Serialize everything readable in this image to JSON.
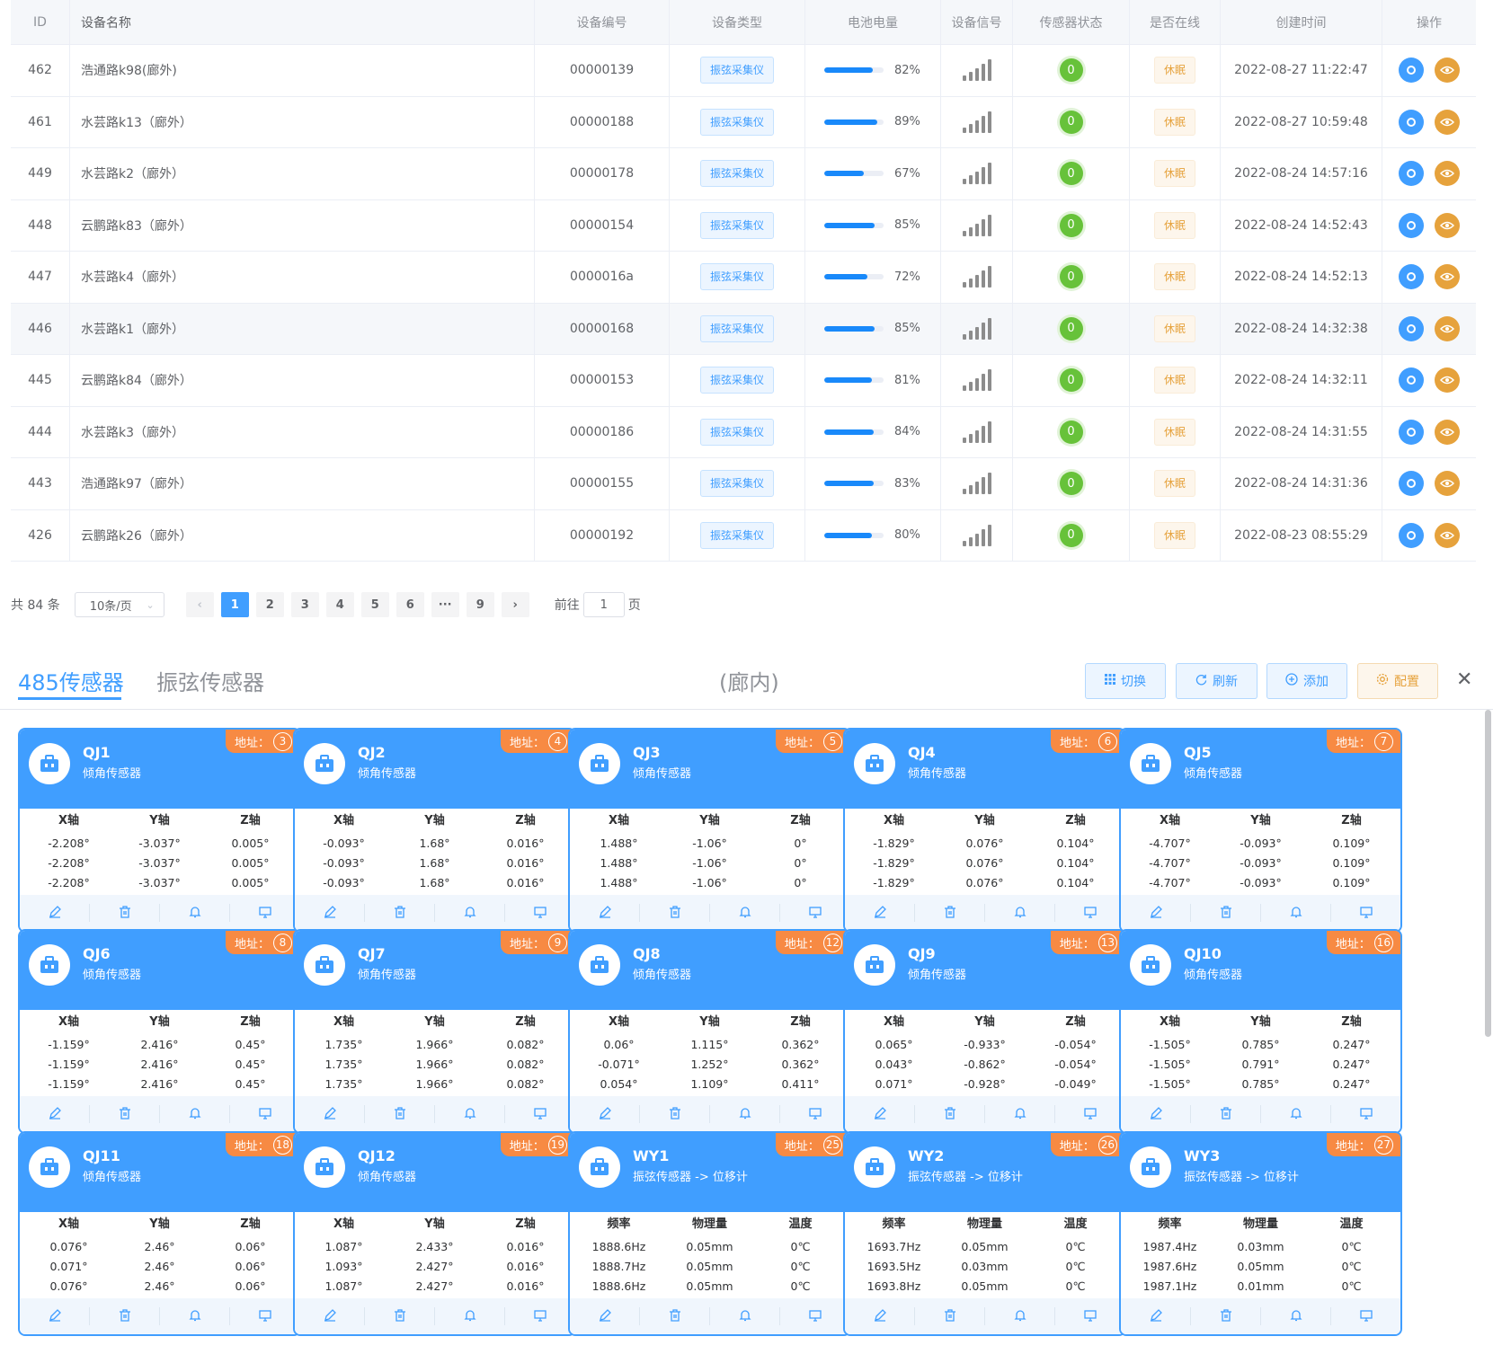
{
  "table": {
    "headers": [
      "ID",
      "设备名称",
      "设备编号",
      "设备类型",
      "电池电量",
      "设备信号",
      "传感器状态",
      "是否在线",
      "创建时间",
      "操作"
    ],
    "rows": [
      {
        "id": "462",
        "name": "浩通路k98(廊外)",
        "code": "00000139",
        "type": "振弦采集仪",
        "battery_pct": 82,
        "battery": "82%",
        "sensor": "0",
        "online": "休眠",
        "created": "2022-08-27 11:22:47"
      },
      {
        "id": "461",
        "name": "水芸路k13（廊外）",
        "code": "00000188",
        "type": "振弦采集仪",
        "battery_pct": 89,
        "battery": "89%",
        "sensor": "0",
        "online": "休眠",
        "created": "2022-08-27 10:59:48"
      },
      {
        "id": "449",
        "name": "水芸路k2（廊外）",
        "code": "00000178",
        "type": "振弦采集仪",
        "battery_pct": 67,
        "battery": "67%",
        "sensor": "0",
        "online": "休眠",
        "created": "2022-08-24 14:57:16"
      },
      {
        "id": "448",
        "name": "云鹏路k83（廊外）",
        "code": "00000154",
        "type": "振弦采集仪",
        "battery_pct": 85,
        "battery": "85%",
        "sensor": "0",
        "online": "休眠",
        "created": "2022-08-24 14:52:43"
      },
      {
        "id": "447",
        "name": "水芸路k4（廊外）",
        "code": "0000016a",
        "type": "振弦采集仪",
        "battery_pct": 72,
        "battery": "72%",
        "sensor": "0",
        "online": "休眠",
        "created": "2022-08-24 14:52:13"
      },
      {
        "id": "446",
        "name": "水芸路k1（廊外）",
        "code": "00000168",
        "type": "振弦采集仪",
        "battery_pct": 85,
        "battery": "85%",
        "sensor": "0",
        "online": "休眠",
        "created": "2022-08-24 14:32:38"
      },
      {
        "id": "445",
        "name": "云鹏路k84（廊外）",
        "code": "00000153",
        "type": "振弦采集仪",
        "battery_pct": 81,
        "battery": "81%",
        "sensor": "0",
        "online": "休眠",
        "created": "2022-08-24 14:32:11"
      },
      {
        "id": "444",
        "name": "水芸路k3（廊外）",
        "code": "00000186",
        "type": "振弦采集仪",
        "battery_pct": 84,
        "battery": "84%",
        "sensor": "0",
        "online": "休眠",
        "created": "2022-08-24 14:31:55"
      },
      {
        "id": "443",
        "name": "浩通路k97（廊外）",
        "code": "00000155",
        "type": "振弦采集仪",
        "battery_pct": 83,
        "battery": "83%",
        "sensor": "0",
        "online": "休眠",
        "created": "2022-08-24 14:31:36"
      },
      {
        "id": "426",
        "name": "云鹏路k26（廊外）",
        "code": "00000192",
        "type": "振弦采集仪",
        "battery_pct": 80,
        "battery": "80%",
        "sensor": "0",
        "online": "休眠",
        "created": "2022-08-23 08:55:29"
      }
    ]
  },
  "pager": {
    "total": "共 84 条",
    "page_size": "10条/页",
    "pages": [
      "1",
      "2",
      "3",
      "4",
      "5",
      "6",
      "···",
      "9"
    ],
    "current": "1",
    "goto_prefix": "前往",
    "goto_value": "1",
    "goto_suffix": "页"
  },
  "tabs": {
    "active": "485传感器",
    "inactive": "振弦传感器",
    "subtitle": "(廊内)"
  },
  "toolbar": {
    "switch": "切换",
    "refresh": "刷新",
    "add": "添加",
    "config": "配置"
  },
  "address_label": "地址：",
  "cards": [
    {
      "title": "QJ1",
      "subtitle": "倾角传感器",
      "addr": "3",
      "cols": [
        "X轴",
        "Y轴",
        "Z轴"
      ],
      "rows": [
        [
          "-2.208°",
          "-3.037°",
          "0.005°"
        ],
        [
          "-2.208°",
          "-3.037°",
          "0.005°"
        ],
        [
          "-2.208°",
          "-3.037°",
          "0.005°"
        ]
      ]
    },
    {
      "title": "QJ2",
      "subtitle": "倾角传感器",
      "addr": "4",
      "cols": [
        "X轴",
        "Y轴",
        "Z轴"
      ],
      "rows": [
        [
          "-0.093°",
          "1.68°",
          "0.016°"
        ],
        [
          "-0.093°",
          "1.68°",
          "0.016°"
        ],
        [
          "-0.093°",
          "1.68°",
          "0.016°"
        ]
      ]
    },
    {
      "title": "QJ3",
      "subtitle": "倾角传感器",
      "addr": "5",
      "cols": [
        "X轴",
        "Y轴",
        "Z轴"
      ],
      "rows": [
        [
          "1.488°",
          "-1.06°",
          "0°"
        ],
        [
          "1.488°",
          "-1.06°",
          "0°"
        ],
        [
          "1.488°",
          "-1.06°",
          "0°"
        ]
      ]
    },
    {
      "title": "QJ4",
      "subtitle": "倾角传感器",
      "addr": "6",
      "cols": [
        "X轴",
        "Y轴",
        "Z轴"
      ],
      "rows": [
        [
          "-1.829°",
          "0.076°",
          "0.104°"
        ],
        [
          "-1.829°",
          "0.076°",
          "0.104°"
        ],
        [
          "-1.829°",
          "0.076°",
          "0.104°"
        ]
      ]
    },
    {
      "title": "QJ5",
      "subtitle": "倾角传感器",
      "addr": "7",
      "cols": [
        "X轴",
        "Y轴",
        "Z轴"
      ],
      "rows": [
        [
          "-4.707°",
          "-0.093°",
          "0.109°"
        ],
        [
          "-4.707°",
          "-0.093°",
          "0.109°"
        ],
        [
          "-4.707°",
          "-0.093°",
          "0.109°"
        ]
      ]
    },
    {
      "title": "QJ6",
      "subtitle": "倾角传感器",
      "addr": "8",
      "cols": [
        "X轴",
        "Y轴",
        "Z轴"
      ],
      "rows": [
        [
          "-1.159°",
          "2.416°",
          "0.45°"
        ],
        [
          "-1.159°",
          "2.416°",
          "0.45°"
        ],
        [
          "-1.159°",
          "2.416°",
          "0.45°"
        ]
      ]
    },
    {
      "title": "QJ7",
      "subtitle": "倾角传感器",
      "addr": "9",
      "cols": [
        "X轴",
        "Y轴",
        "Z轴"
      ],
      "rows": [
        [
          "1.735°",
          "1.966°",
          "0.082°"
        ],
        [
          "1.735°",
          "1.966°",
          "0.082°"
        ],
        [
          "1.735°",
          "1.966°",
          "0.082°"
        ]
      ]
    },
    {
      "title": "QJ8",
      "subtitle": "倾角传感器",
      "addr": "12",
      "cols": [
        "X轴",
        "Y轴",
        "Z轴"
      ],
      "rows": [
        [
          "0.06°",
          "1.115°",
          "0.362°"
        ],
        [
          "-0.071°",
          "1.252°",
          "0.362°"
        ],
        [
          "0.054°",
          "1.109°",
          "0.411°"
        ]
      ]
    },
    {
      "title": "QJ9",
      "subtitle": "倾角传感器",
      "addr": "13",
      "cols": [
        "X轴",
        "Y轴",
        "Z轴"
      ],
      "rows": [
        [
          "0.065°",
          "-0.933°",
          "-0.054°"
        ],
        [
          "0.043°",
          "-0.862°",
          "-0.054°"
        ],
        [
          "0.071°",
          "-0.928°",
          "-0.049°"
        ]
      ]
    },
    {
      "title": "QJ10",
      "subtitle": "倾角传感器",
      "addr": "16",
      "cols": [
        "X轴",
        "Y轴",
        "Z轴"
      ],
      "rows": [
        [
          "-1.505°",
          "0.785°",
          "0.247°"
        ],
        [
          "-1.505°",
          "0.791°",
          "0.247°"
        ],
        [
          "-1.505°",
          "0.785°",
          "0.247°"
        ]
      ]
    },
    {
      "title": "QJ11",
      "subtitle": "倾角传感器",
      "addr": "18",
      "cols": [
        "X轴",
        "Y轴",
        "Z轴"
      ],
      "rows": [
        [
          "0.076°",
          "2.46°",
          "0.06°"
        ],
        [
          "0.071°",
          "2.46°",
          "0.06°"
        ],
        [
          "0.076°",
          "2.46°",
          "0.06°"
        ]
      ]
    },
    {
      "title": "QJ12",
      "subtitle": "倾角传感器",
      "addr": "19",
      "cols": [
        "X轴",
        "Y轴",
        "Z轴"
      ],
      "rows": [
        [
          "1.087°",
          "2.433°",
          "0.016°"
        ],
        [
          "1.093°",
          "2.427°",
          "0.016°"
        ],
        [
          "1.087°",
          "2.427°",
          "0.016°"
        ]
      ]
    },
    {
      "title": "WY1",
      "subtitle": "振弦传感器 -> 位移计",
      "addr": "25",
      "cols": [
        "频率",
        "物理量",
        "温度"
      ],
      "rows": [
        [
          "1888.6Hz",
          "0.05mm",
          "0℃"
        ],
        [
          "1888.7Hz",
          "0.05mm",
          "0℃"
        ],
        [
          "1888.6Hz",
          "0.05mm",
          "0℃"
        ]
      ]
    },
    {
      "title": "WY2",
      "subtitle": "振弦传感器 -> 位移计",
      "addr": "26",
      "cols": [
        "频率",
        "物理量",
        "温度"
      ],
      "rows": [
        [
          "1693.7Hz",
          "0.05mm",
          "0℃"
        ],
        [
          "1693.5Hz",
          "0.03mm",
          "0℃"
        ],
        [
          "1693.8Hz",
          "0.05mm",
          "0℃"
        ]
      ]
    },
    {
      "title": "WY3",
      "subtitle": "振弦传感器 -> 位移计",
      "addr": "27",
      "cols": [
        "频率",
        "物理量",
        "温度"
      ],
      "rows": [
        [
          "1987.4Hz",
          "0.03mm",
          "0℃"
        ],
        [
          "1987.6Hz",
          "0.05mm",
          "0℃"
        ],
        [
          "1987.1Hz",
          "0.01mm",
          "0℃"
        ]
      ]
    }
  ]
}
